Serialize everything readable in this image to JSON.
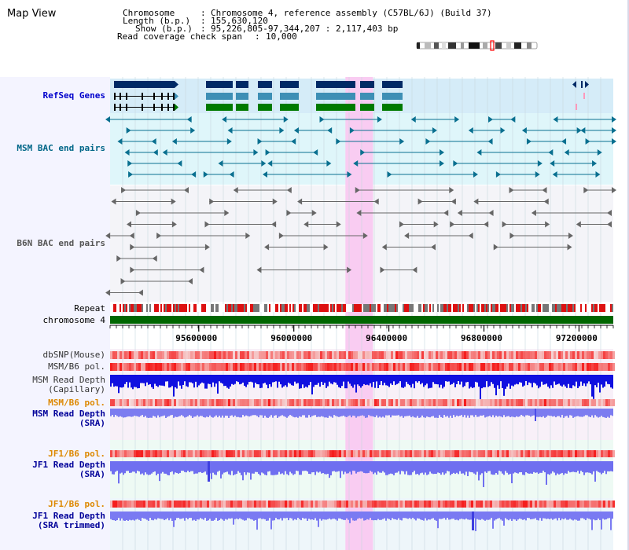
{
  "header": {
    "title": "Map View",
    "info_rows": [
      {
        "key": "Chromosome",
        "value": "Chromosome 4, reference assembly (C57BL/6J) (Build 37)"
      },
      {
        "key": "Length (b.p.)",
        "value": "155,630,120"
      },
      {
        "key": "Show (b.p.)",
        "value": "95,226,805-97,344,207 : 2,117,403 bp"
      },
      {
        "key": "Read coverage check span",
        "value": "10,000"
      }
    ]
  },
  "view": {
    "start": 95226805,
    "end": 97344207,
    "highlight_start": 96217000,
    "highlight_end": 96333000
  },
  "tracks": {
    "refseq": {
      "label": "RefSeq Genes",
      "color": "#0000cc"
    },
    "msm_bac": {
      "label": "MSM BAC end pairs",
      "color": "#006688"
    },
    "b6n_bac": {
      "label": "B6N BAC end pairs",
      "color": "#555555"
    },
    "repeat": {
      "label": "Repeat"
    },
    "chromosome": {
      "label": "chromosome 4"
    },
    "dbsnp": {
      "label": "dbSNP(Mouse)"
    },
    "msm_b6_pol_1": {
      "label": "MSM/B6 pol."
    },
    "msm_depth_cap": {
      "label_1": "MSM Read Depth",
      "label_2": "(Capillary)"
    },
    "msm_b6_pol_2": {
      "label": "MSM/B6 pol."
    },
    "msm_depth_sra": {
      "label_1": "MSM Read Depth",
      "label_2": "(SRA)"
    },
    "jf1_b6_pol_1": {
      "label": "JF1/B6 pol."
    },
    "jf1_depth_sra": {
      "label_1": "JF1 Read Depth",
      "label_2": "(SRA)"
    },
    "jf1_b6_pol_2": {
      "label": "JF1/B6 pol."
    },
    "jf1_depth_trim": {
      "label_1": "JF1 Read Depth",
      "label_2": "(SRA trimmed)"
    }
  },
  "axis": {
    "ticks": [
      95600000,
      96000000,
      96400000,
      96800000,
      97200000
    ],
    "tick_labels": [
      "95600000",
      "96000000",
      "96400000",
      "96800000",
      "97200000"
    ]
  },
  "colors": {
    "navy": "#002a66",
    "teal_blue": "#3d8fb5",
    "green": "#007a00",
    "chrom_green": "#006600",
    "highlight": "#f9ccf2",
    "label_gray": "#333333",
    "orange": "#dd8800"
  }
}
